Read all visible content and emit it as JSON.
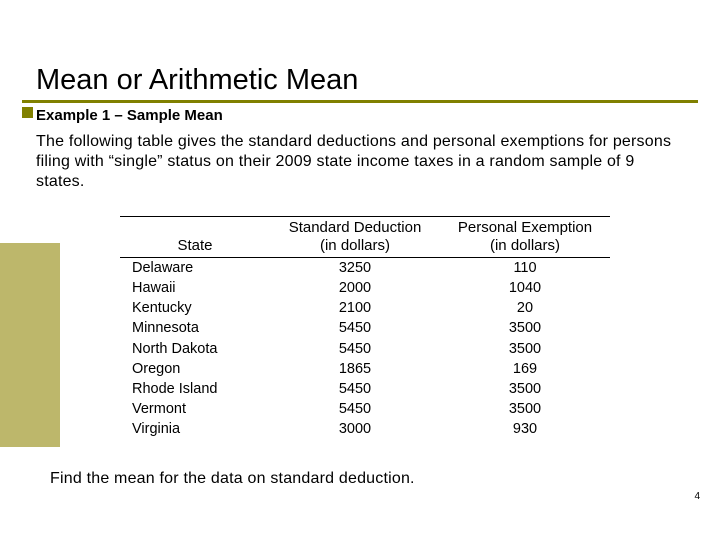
{
  "title": "Mean or Arithmetic Mean",
  "subtitle": "Example 1 – Sample Mean",
  "intro": "The following table gives the standard deductions and personal exemptions for persons filing with “single” status on their 2009 state income taxes in a random sample of 9 states.",
  "prompt": "Find the mean for the data on standard deduction.",
  "pagenum": "4",
  "table": {
    "headers": {
      "state": "State",
      "stdded_l1": "Standard Deduction",
      "stdded_l2": "(in dollars)",
      "exemp_l1": "Personal Exemption",
      "exemp_l2": "(in dollars)"
    },
    "rows": [
      {
        "state": "Delaware",
        "stdded": "3250",
        "exemp": "110"
      },
      {
        "state": "Hawaii",
        "stdded": "2000",
        "exemp": "1040"
      },
      {
        "state": "Kentucky",
        "stdded": "2100",
        "exemp": "20"
      },
      {
        "state": "Minnesota",
        "stdded": "5450",
        "exemp": "3500"
      },
      {
        "state": "North Dakota",
        "stdded": "5450",
        "exemp": "3500"
      },
      {
        "state": "Oregon",
        "stdded": "1865",
        "exemp": "169"
      },
      {
        "state": "Rhode Island",
        "stdded": "5450",
        "exemp": "3500"
      },
      {
        "state": "Vermont",
        "stdded": "5450",
        "exemp": "3500"
      },
      {
        "state": "Virginia",
        "stdded": "3000",
        "exemp": "930"
      }
    ]
  },
  "colors": {
    "accent": "#808000",
    "sidebar": "#bdb76b",
    "text": "#000000",
    "background": "#ffffff"
  }
}
